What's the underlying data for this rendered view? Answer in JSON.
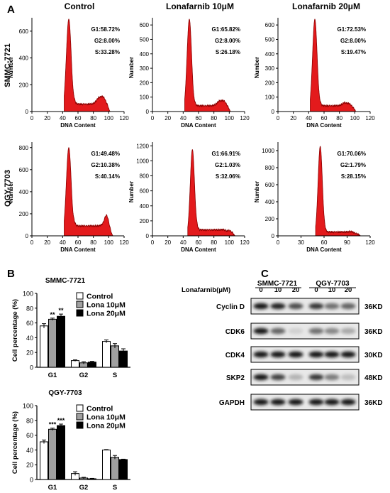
{
  "panels": {
    "A": "A",
    "B": "B",
    "C": "C"
  },
  "panel_a": {
    "col_titles": [
      "Control",
      "Lonafarnib 10μM",
      "Lonafarnib 20μM"
    ],
    "row_labels": [
      "SMMC-7721",
      "QGY-7703"
    ],
    "xlabel": "DNA Content",
    "ylabel": "Number"
  },
  "chart_data": [
    {
      "type": "area",
      "id": "hist-smmc-control",
      "cell_line": "SMMC-7721",
      "condition": "Control",
      "xlabel": "DNA Content",
      "ylabel": "Number",
      "xlim": [
        0,
        120
      ],
      "ylim": [
        0,
        700
      ],
      "xticks": [
        0,
        20,
        40,
        60,
        80,
        100,
        120
      ],
      "yticks": [
        0,
        200,
        400,
        600
      ],
      "stats": [
        "G1:58.72%",
        "G2:8.00%",
        "S:33.28%"
      ],
      "g1_peak": 48,
      "g1_height": 690,
      "g1_width": 3.2,
      "g2_peak": 92,
      "g2_height": 110,
      "g2_width": 5,
      "s_level": 55,
      "s_start": 54,
      "s_end": 88,
      "tail_end": 102
    },
    {
      "type": "area",
      "id": "hist-smmc-lona10",
      "cell_line": "SMMC-7721",
      "condition": "Lonafarnib 10μM",
      "xlabel": "DNA Content",
      "ylabel": "Number",
      "xlim": [
        0,
        120
      ],
      "ylim": [
        0,
        650
      ],
      "xticks": [
        0,
        20,
        40,
        60,
        80,
        100,
        120
      ],
      "yticks": [
        0,
        100,
        200,
        300,
        400,
        500,
        600
      ],
      "stats": [
        "G1:65.82%",
        "G2:8.00%",
        "S:26.18%"
      ],
      "g1_peak": 48,
      "g1_height": 640,
      "g1_width": 3.0,
      "g2_peak": 92,
      "g2_height": 75,
      "g2_width": 5,
      "s_level": 40,
      "s_start": 54,
      "s_end": 88,
      "tail_end": 102
    },
    {
      "type": "area",
      "id": "hist-smmc-lona20",
      "cell_line": "SMMC-7721",
      "condition": "Lonafarnib 20μM",
      "xlabel": "DNA Content",
      "ylabel": "Number",
      "xlim": [
        0,
        120
      ],
      "ylim": [
        0,
        650
      ],
      "xticks": [
        0,
        20,
        40,
        60,
        80,
        100,
        120
      ],
      "yticks": [
        0,
        100,
        200,
        300,
        400,
        500,
        600
      ],
      "stats": [
        "G1:72.53%",
        "G2:8.00%",
        "S:19.47%"
      ],
      "g1_peak": 48,
      "g1_height": 640,
      "g1_width": 3.0,
      "g2_peak": 92,
      "g2_height": 55,
      "g2_width": 5,
      "s_level": 40,
      "s_start": 54,
      "s_end": 88,
      "tail_end": 102
    },
    {
      "type": "area",
      "id": "hist-qgy-control",
      "cell_line": "QGY-7703",
      "condition": "Control",
      "xlabel": "DNA Content",
      "ylabel": "Number",
      "xlim": [
        0,
        120
      ],
      "ylim": [
        0,
        850
      ],
      "xticks": [
        0,
        20,
        40,
        60,
        80,
        100,
        120
      ],
      "yticks": [
        0,
        200,
        400,
        600,
        800
      ],
      "stats": [
        "G1:49.48%",
        "G2:10.38%",
        "S:40.14%"
      ],
      "g1_peak": 48,
      "g1_height": 800,
      "g1_width": 3.2,
      "g2_peak": 97,
      "g2_height": 185,
      "g2_width": 3.5,
      "s_level": 90,
      "s_start": 54,
      "s_end": 92,
      "tail_end": 106
    },
    {
      "type": "area",
      "id": "hist-qgy-lona10",
      "cell_line": "QGY-7703",
      "condition": "Lonafarnib 10μM",
      "xlabel": "DNA Content",
      "ylabel": "Number",
      "xlim": [
        0,
        120
      ],
      "ylim": [
        0,
        1250
      ],
      "xticks": [
        0,
        20,
        40,
        60,
        80,
        100,
        120
      ],
      "yticks": [
        0,
        200,
        400,
        600,
        800,
        1000,
        1200
      ],
      "stats": [
        "G1:66.91%",
        "G2:1.03%",
        "S:32.06%"
      ],
      "g1_peak": 52,
      "g1_height": 1150,
      "g1_width": 2.8,
      "g2_peak": 100,
      "g2_height": 70,
      "g2_width": 4,
      "s_level": 80,
      "s_start": 57,
      "s_end": 95,
      "tail_end": 108
    },
    {
      "type": "area",
      "id": "hist-qgy-lona20",
      "cell_line": "QGY-7703",
      "condition": "Lonafarnib 20μM",
      "xlabel": "DNA Content",
      "ylabel": "Number",
      "xlim": [
        0,
        120
      ],
      "ylim": [
        0,
        1100
      ],
      "xticks": [
        0,
        30,
        60,
        90,
        120
      ],
      "yticks": [
        0,
        200,
        400,
        600,
        800,
        1000
      ],
      "stats": [
        "G1:70.06%",
        "G2:1.79%",
        "S:28.15%"
      ],
      "g1_peak": 55,
      "g1_height": 1050,
      "g1_width": 2.8,
      "g2_peak": 100,
      "g2_height": 30,
      "g2_width": 4,
      "s_level": 45,
      "s_start": 60,
      "s_end": 97,
      "tail_end": 108
    },
    {
      "type": "bar",
      "id": "bar-smmc",
      "title": "SMMC-7721",
      "ylabel": "Cell percentage (%)",
      "categories": [
        "G1",
        "G2",
        "S"
      ],
      "ylim": [
        0,
        100
      ],
      "yticks": [
        0,
        20,
        40,
        60,
        80,
        100
      ],
      "series": [
        {
          "name": "Control",
          "color": "#ffffff",
          "values": [
            56,
            9,
            35
          ],
          "errors": [
            3,
            1,
            2
          ],
          "sig": [
            "",
            "",
            ""
          ]
        },
        {
          "name": "Lona 10μM",
          "color": "#a0a0a0",
          "values": [
            65,
            6,
            29
          ],
          "errors": [
            1.5,
            1.5,
            3
          ],
          "sig": [
            "**",
            "",
            ""
          ]
        },
        {
          "name": "Lona 20μM",
          "color": "#000000",
          "values": [
            69,
            7,
            22
          ],
          "errors": [
            3,
            1,
            3
          ],
          "sig": [
            "**",
            "",
            ""
          ]
        }
      ]
    },
    {
      "type": "bar",
      "id": "bar-qgy",
      "title": "QGY-7703",
      "ylabel": "Cell percentage (%)",
      "categories": [
        "G1",
        "G2",
        "S"
      ],
      "ylim": [
        0,
        100
      ],
      "yticks": [
        0,
        20,
        40,
        60,
        80,
        100
      ],
      "series": [
        {
          "name": "Control",
          "color": "#ffffff",
          "values": [
            51,
            8,
            40
          ],
          "errors": [
            2.5,
            2.5,
            0.5
          ],
          "sig": [
            "",
            "",
            ""
          ]
        },
        {
          "name": "Lona 10μM",
          "color": "#a0a0a0",
          "values": [
            68,
            2,
            30
          ],
          "errors": [
            1.5,
            1,
            2.5
          ],
          "sig": [
            "***",
            "",
            ""
          ]
        },
        {
          "name": "Lona 20μM",
          "color": "#000000",
          "values": [
            73,
            1,
            27
          ],
          "errors": [
            2,
            0.5,
            0.5
          ],
          "sig": [
            "***",
            "",
            ""
          ]
        }
      ]
    }
  ],
  "western": {
    "cell_lines": [
      "SMMC-7721",
      "QGY-7703"
    ],
    "treatment_label": "Lonafarnib(μM)",
    "doses": [
      "0",
      "10",
      "20",
      "0",
      "10",
      "20"
    ],
    "bands": [
      {
        "protein": "Cyclin D",
        "size": "36KD",
        "intensity": [
          0.95,
          0.9,
          0.7,
          0.8,
          0.55,
          0.6
        ]
      },
      {
        "protein": "CDK6",
        "size": "36KD",
        "intensity": [
          0.95,
          0.6,
          0.12,
          0.55,
          0.45,
          0.3
        ]
      },
      {
        "protein": "CDK4",
        "size": "30KD",
        "intensity": [
          0.95,
          0.95,
          0.95,
          0.95,
          0.95,
          0.95
        ]
      },
      {
        "protein": "SKP2",
        "size": "48KD",
        "intensity": [
          0.95,
          0.75,
          0.25,
          0.8,
          0.5,
          0.2
        ]
      },
      {
        "protein": "GAPDH",
        "size": "36KD",
        "intensity": [
          0.95,
          0.95,
          0.95,
          0.95,
          0.95,
          0.95
        ]
      }
    ]
  },
  "colors": {
    "histogram_fill": "#e31a1c",
    "histogram_line": "#8b0000"
  }
}
